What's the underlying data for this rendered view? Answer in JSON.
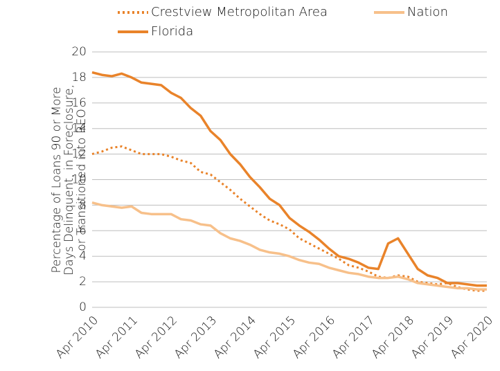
{
  "chart_data": {
    "type": "line",
    "y_label": [
      "Percentage of Loans 90 or More",
      "Days Delinquent, in Foreclosure,",
      "or Transitioned into REO"
    ],
    "categories": [
      "Apr 2010",
      null,
      null,
      null,
      "Apr 2011",
      null,
      null,
      null,
      "Apr 2012",
      null,
      null,
      null,
      "Apr 2013",
      null,
      null,
      null,
      "Apr 2014",
      null,
      null,
      null,
      "Apr 2015",
      null,
      null,
      null,
      "Apr 2016",
      null,
      null,
      null,
      "Apr 2017",
      null,
      null,
      null,
      "Apr 2018",
      null,
      null,
      null,
      "Apr 2019",
      null,
      null,
      null,
      "Apr 2020"
    ],
    "series": [
      {
        "name": "Crestview Metropolitan Area",
        "color": "#e9832a",
        "style": "dotted",
        "values": [
          12.0,
          12.2,
          12.5,
          12.6,
          12.3,
          12.0,
          12.0,
          12.0,
          11.8,
          11.5,
          11.3,
          10.6,
          10.4,
          9.8,
          9.2,
          8.5,
          7.9,
          7.3,
          6.8,
          6.5,
          6.1,
          5.4,
          5.0,
          4.6,
          4.2,
          3.8,
          3.3,
          3.1,
          2.8,
          2.4,
          2.3,
          2.5,
          2.4,
          2.0,
          1.9,
          1.8,
          1.9,
          1.6,
          1.4,
          1.3,
          1.3
        ]
      },
      {
        "name": "Nation",
        "color": "#f7c08a",
        "style": "solid",
        "values": [
          8.2,
          8.0,
          7.9,
          7.8,
          7.9,
          7.4,
          7.3,
          7.3,
          7.3,
          6.9,
          6.8,
          6.5,
          6.4,
          5.8,
          5.4,
          5.2,
          4.9,
          4.5,
          4.3,
          4.2,
          4.0,
          3.7,
          3.5,
          3.4,
          3.1,
          2.9,
          2.7,
          2.6,
          2.4,
          2.3,
          2.3,
          2.4,
          2.2,
          1.9,
          1.8,
          1.7,
          1.6,
          1.5,
          1.5,
          1.4,
          1.4
        ]
      },
      {
        "name": "Florida",
        "color": "#e9832a",
        "style": "solid",
        "values": [
          18.4,
          18.2,
          18.1,
          18.3,
          18.0,
          17.6,
          17.5,
          17.4,
          16.8,
          16.4,
          15.6,
          15.0,
          13.8,
          13.1,
          12.0,
          11.2,
          10.2,
          9.4,
          8.5,
          8.0,
          7.0,
          6.4,
          5.9,
          5.3,
          4.6,
          4.0,
          3.8,
          3.5,
          3.1,
          3.0,
          5.0,
          5.4,
          4.2,
          3.0,
          2.5,
          2.3,
          1.9,
          1.9,
          1.8,
          1.7,
          1.7
        ]
      }
    ],
    "ylim": [
      0,
      20
    ],
    "yticks": [
      0,
      2,
      4,
      6,
      8,
      10,
      12,
      14,
      16,
      18,
      20
    ],
    "grid": true
  }
}
